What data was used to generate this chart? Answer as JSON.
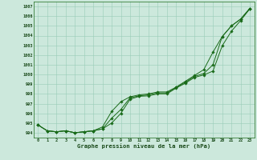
{
  "x": [
    0,
    1,
    2,
    3,
    4,
    5,
    6,
    7,
    8,
    9,
    10,
    11,
    12,
    13,
    14,
    15,
    16,
    17,
    18,
    19,
    20,
    21,
    22,
    23
  ],
  "upper": [
    994.8,
    994.2,
    994.1,
    994.2,
    994.0,
    994.1,
    994.2,
    994.6,
    996.2,
    997.2,
    997.7,
    997.9,
    998.0,
    998.2,
    998.2,
    998.7,
    999.3,
    999.9,
    1000.5,
    1002.3,
    1003.9,
    1005.0,
    1005.7,
    1006.8
  ],
  "middle": [
    994.8,
    994.2,
    994.1,
    994.2,
    994.0,
    994.1,
    994.2,
    994.4,
    995.5,
    996.4,
    997.6,
    997.8,
    997.9,
    998.1,
    998.1,
    998.65,
    999.2,
    999.8,
    1000.1,
    1001.0,
    1003.9,
    1005.0,
    1005.7,
    1006.8
  ],
  "lower": [
    994.8,
    994.2,
    994.1,
    994.2,
    994.0,
    994.1,
    994.2,
    994.4,
    995.0,
    996.0,
    997.45,
    997.75,
    997.8,
    998.0,
    998.0,
    998.6,
    999.1,
    999.7,
    999.95,
    1000.35,
    1002.95,
    1004.45,
    1005.55,
    1006.75
  ],
  "line_color": "#1a6b1a",
  "bg_color": "#cce8dc",
  "grid_color": "#99ccb8",
  "ylabel_values": [
    994,
    995,
    996,
    997,
    998,
    999,
    1000,
    1001,
    1002,
    1003,
    1004,
    1005,
    1006,
    1007
  ],
  "ylim": [
    993.5,
    1007.5
  ],
  "xlim": [
    -0.5,
    23.5
  ],
  "xlabel": "Graphe pression niveau de la mer (hPa)"
}
